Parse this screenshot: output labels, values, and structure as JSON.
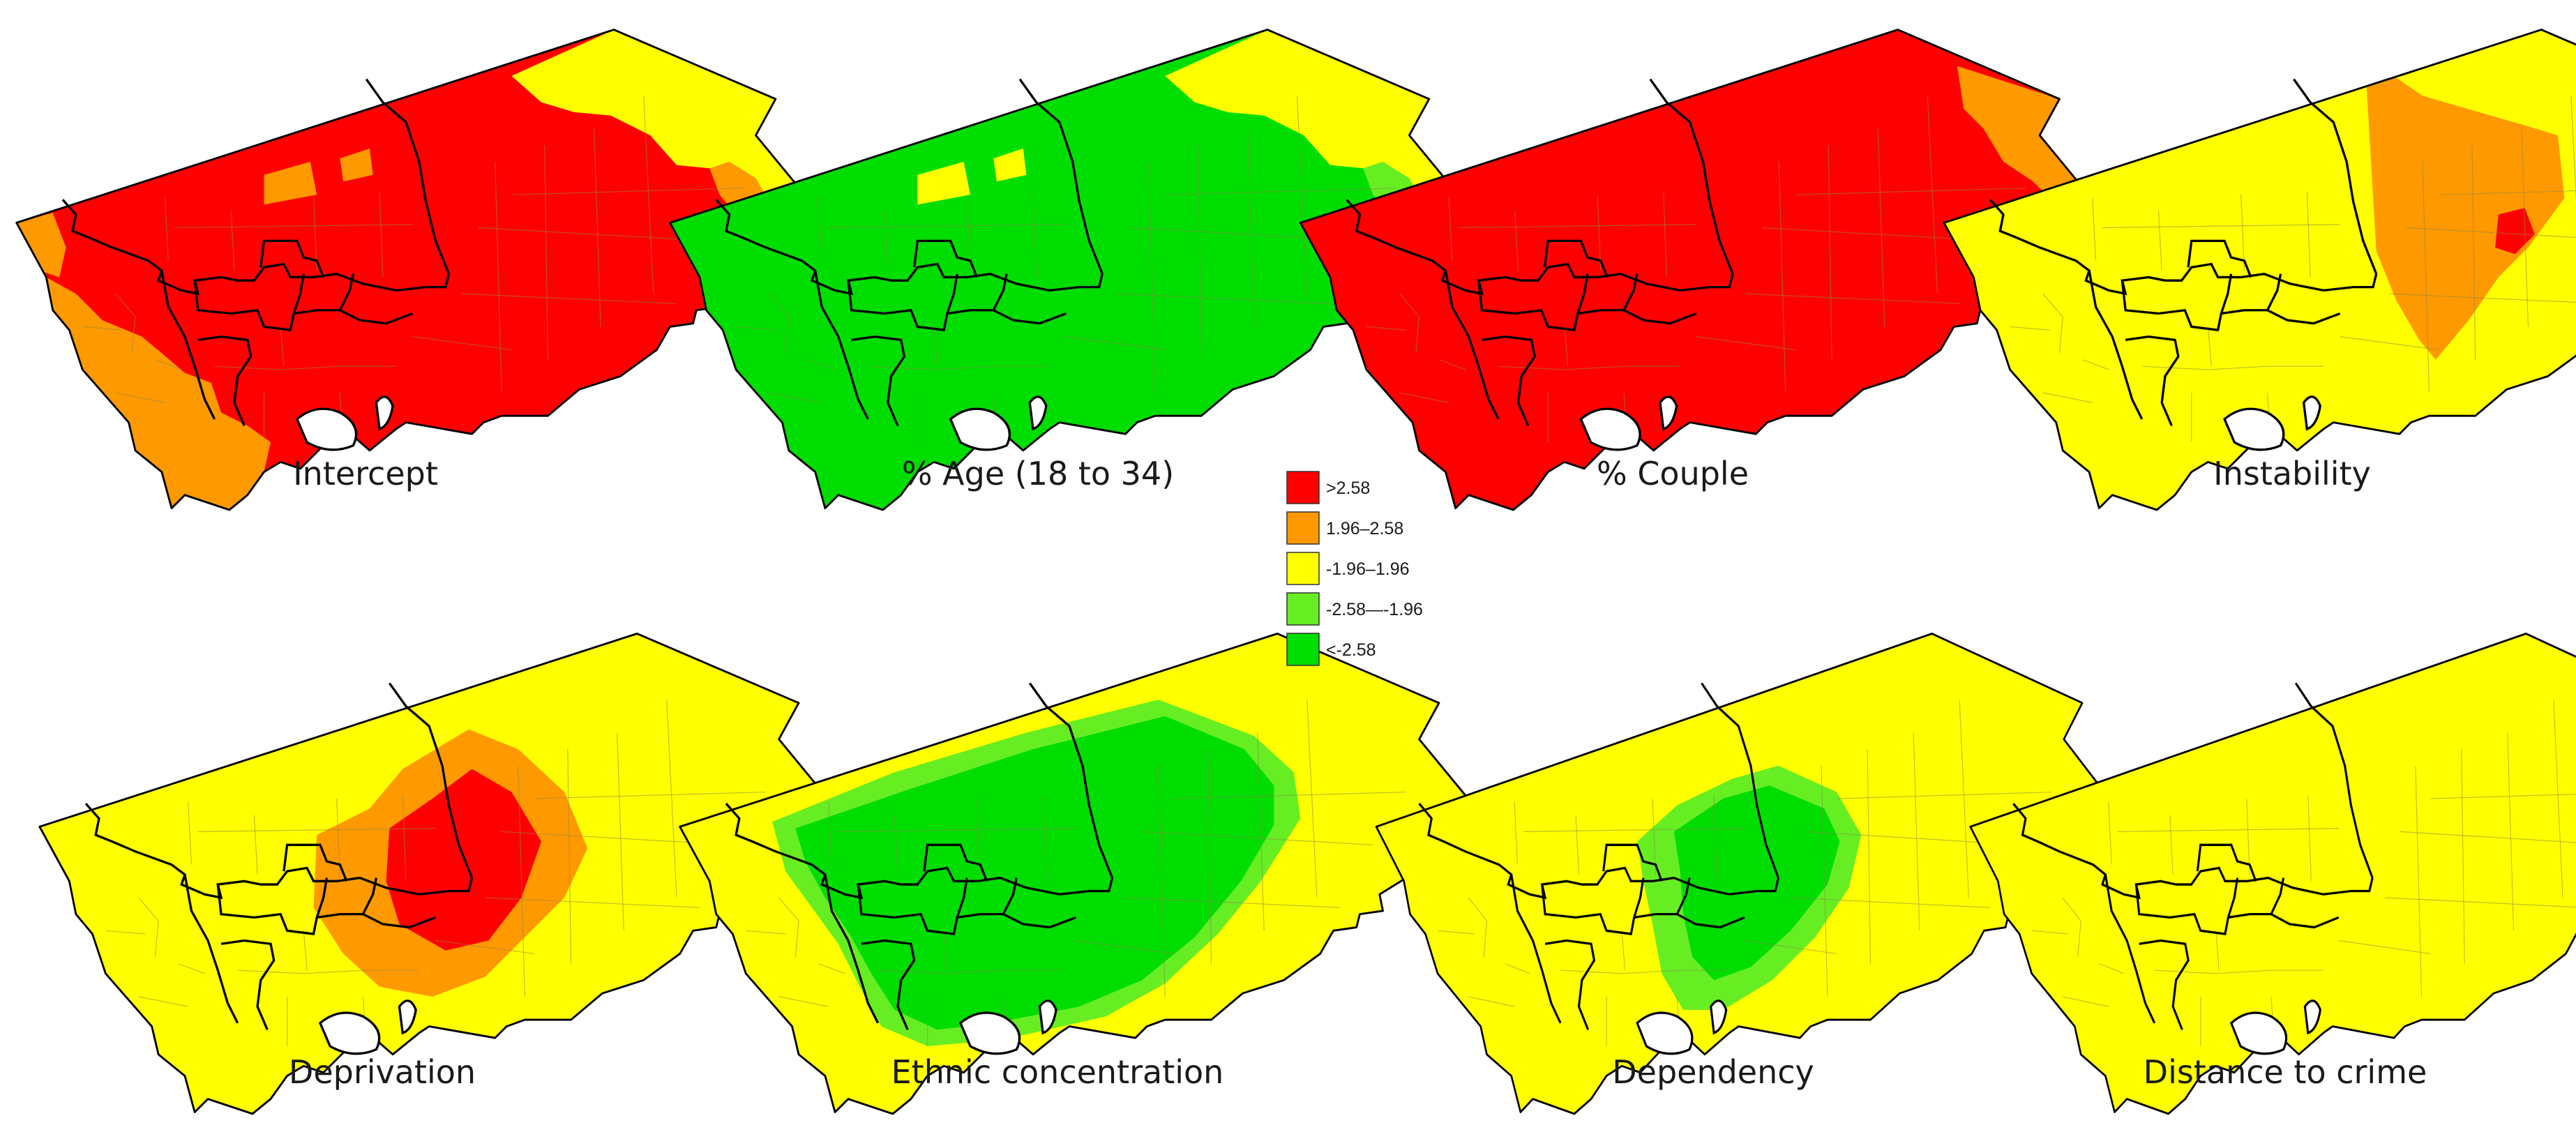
{
  "colors": {
    "gt_2_58": "#ff0000",
    "r_1_96_2_58": "#ff9900",
    "r_neg1_96_1_96": "#ffff00",
    "r_neg2_58_neg1_96": "#66ee22",
    "lt_neg2_58": "#00dd00",
    "border": "#000000",
    "tract": "#8a8a4a",
    "island": "#ffffff"
  },
  "legend": [
    {
      "label": ">2.58",
      "color": "#ff0000"
    },
    {
      "label": "1.96–2.58",
      "color": "#ff9900"
    },
    {
      "label": "-1.96–1.96",
      "color": "#ffff00"
    },
    {
      "label": "-2.58—-1.96",
      "color": "#66ee22"
    },
    {
      "label": "<-2.58",
      "color": "#00dd00"
    }
  ],
  "panels": [
    {
      "title": "Intercept",
      "base": "gt_2_58",
      "patches": [
        {
          "class": "r_1_96_2_58",
          "zone": "southwest"
        },
        {
          "class": "r_1_96_2_58",
          "zone": "west-edge"
        },
        {
          "class": "r_neg1_96_1_96",
          "zone": "northeast"
        },
        {
          "class": "r_1_96_2_58",
          "zone": "northeast-fringe"
        },
        {
          "class": "r_1_96_2_58",
          "zone": "north-blocks"
        }
      ]
    },
    {
      "title": "% Age (18 to 34)",
      "base": "lt_neg2_58",
      "patches": [
        {
          "class": "r_neg1_96_1_96",
          "zone": "northeast"
        },
        {
          "class": "r_neg2_58_neg1_96",
          "zone": "northeast-fringe"
        },
        {
          "class": "r_neg1_96_1_96",
          "zone": "north-blocks"
        }
      ]
    },
    {
      "title": "% Couple",
      "base": "gt_2_58",
      "patches": [
        {
          "class": "r_1_96_2_58",
          "zone": "northeast-corner"
        }
      ]
    },
    {
      "title": "Instability",
      "base": "r_neg1_96_1_96",
      "patches": [
        {
          "class": "r_1_96_2_58",
          "zone": "east-centre"
        },
        {
          "class": "gt_2_58",
          "zone": "east-centre-spot"
        }
      ]
    },
    {
      "title": "Deprivation",
      "base": "r_neg1_96_1_96",
      "patches": [
        {
          "class": "r_1_96_2_58",
          "zone": "centre-halo"
        },
        {
          "class": "gt_2_58",
          "zone": "centre-core"
        }
      ]
    },
    {
      "title": "Ethnic concentration",
      "base": "r_neg1_96_1_96",
      "patches": [
        {
          "class": "r_neg2_58_neg1_96",
          "zone": "centre-wide-halo"
        },
        {
          "class": "lt_neg2_58",
          "zone": "centre-wide"
        }
      ]
    },
    {
      "title": "Dependency",
      "base": "r_neg1_96_1_96",
      "patches": [
        {
          "class": "r_neg2_58_neg1_96",
          "zone": "centre-east-halo"
        },
        {
          "class": "lt_neg2_58",
          "zone": "centre-east"
        }
      ]
    },
    {
      "title": "Distance to crime",
      "base": "r_neg1_96_1_96",
      "patches": []
    }
  ]
}
